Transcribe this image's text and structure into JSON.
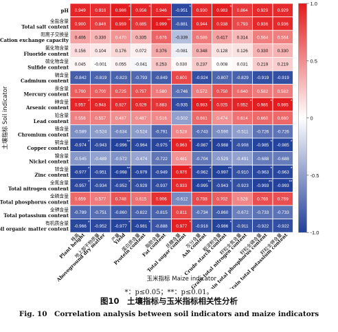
{
  "chart_data": {
    "type": "heatmap",
    "rows": [
      {
        "cn": "",
        "en": "pH"
      },
      {
        "cn": "全盐含量",
        "en": "Total salt content"
      },
      {
        "cn": "阳离子交换量",
        "en": "Cation exchange capacity"
      },
      {
        "cn": "氟化物含量",
        "en": "Fluoride content"
      },
      {
        "cn": "硫化物含量",
        "en": "Sulfide content"
      },
      {
        "cn": "镉含量",
        "en": "Cadmium content"
      },
      {
        "cn": "汞含量",
        "en": "Mercury content"
      },
      {
        "cn": "砷含量",
        "en": "Arsenic content"
      },
      {
        "cn": "铅含量",
        "en": "Lead content"
      },
      {
        "cn": "铬含量",
        "en": "Chromium content"
      },
      {
        "cn": "铜含量",
        "en": "Copper content"
      },
      {
        "cn": "镍含量",
        "en": "Nickel content"
      },
      {
        "cn": "锌含量",
        "en": "Zinc content"
      },
      {
        "cn": "全氮含量",
        "en": "Total nitrogen content"
      },
      {
        "cn": "全磷含量",
        "en": "Total phosphorus content"
      },
      {
        "cn": "全钾含量",
        "en": "Total potassium content"
      },
      {
        "cn": "有机质含量",
        "en": "Soil organic matter content"
      }
    ],
    "columns": [
      {
        "cn": "株高",
        "en": "Plant height"
      },
      {
        "cn": "地上部干物质量",
        "en": "Aboveground dry matter"
      },
      {
        "cn": "产量",
        "en": "Yield"
      },
      {
        "cn": "蛋白质含量",
        "en": "Protein content"
      },
      {
        "cn": "脂肪含量",
        "en": "Fat content"
      },
      {
        "cn": "总糖含量",
        "en": "Total sugar content"
      },
      {
        "cn": "灰分含量",
        "en": "Ash content"
      },
      {
        "cn": "粗淀粉含量",
        "en": "Crude starch content"
      },
      {
        "cn": "籽粒全氮含量",
        "en": "Grain total nitrogen content"
      },
      {
        "cn": "籽粒全磷含量",
        "en": "Grain total phosphorus content"
      },
      {
        "cn": "籽粒全钾含量",
        "en": "Grain total potassium content"
      }
    ],
    "values": [
      [
        0.949,
        0.916,
        0.986,
        0.956,
        0.946,
        -0.951,
        0.93,
        0.983,
        0.864,
        0.929,
        0.929
      ],
      [
        0.9,
        0.846,
        0.959,
        0.885,
        0.999,
        -0.881,
        0.944,
        0.938,
        0.793,
        0.936,
        0.936
      ],
      [
        0.406,
        0.33,
        0.47,
        0.335,
        0.676,
        -0.339,
        0.586,
        0.417,
        0.314,
        0.564,
        0.564
      ],
      [
        0.156,
        0.104,
        0.176,
        0.072,
        0.376,
        -0.081,
        0.348,
        0.128,
        0.126,
        0.33,
        0.33
      ],
      [
        0.045,
        -0.001,
        0.055,
        -0.041,
        0.253,
        0.03,
        0.237,
        0.008,
        0.031,
        0.219,
        0.219
      ],
      [
        -0.842,
        -0.819,
        -0.823,
        -0.793,
        -0.849,
        0.8,
        -0.924,
        -0.807,
        -0.829,
        -0.919,
        -0.919
      ],
      [
        0.7,
        0.7,
        0.725,
        0.757,
        0.58,
        -0.746,
        0.572,
        0.75,
        0.64,
        0.582,
        0.582
      ],
      [
        0.957,
        0.948,
        0.927,
        0.929,
        0.883,
        -0.935,
        0.983,
        0.925,
        0.952,
        0.985,
        0.985
      ],
      [
        0.556,
        0.557,
        0.487,
        0.487,
        0.516,
        -0.502,
        0.661,
        0.474,
        0.614,
        0.66,
        0.66
      ],
      [
        -0.589,
        -0.524,
        -0.634,
        -0.524,
        -0.791,
        0.528,
        -0.743,
        -0.59,
        -0.511,
        -0.726,
        -0.726
      ],
      [
        -0.974,
        -0.943,
        -0.996,
        -0.964,
        -0.975,
        0.963,
        -0.987,
        -0.988,
        -0.908,
        -0.985,
        -0.985
      ],
      [
        -0.545,
        -0.489,
        -0.572,
        -0.474,
        -0.722,
        0.481,
        -0.704,
        -0.529,
        -0.491,
        -0.688,
        -0.688
      ],
      [
        -0.977,
        -0.951,
        -0.998,
        -0.979,
        -0.949,
        0.976,
        -0.962,
        -0.997,
        -0.91,
        -0.963,
        -0.963
      ],
      [
        -0.957,
        -0.934,
        -0.952,
        -0.929,
        -0.937,
        0.933,
        -0.995,
        -0.943,
        -0.923,
        -0.993,
        -0.993
      ],
      [
        0.659,
        0.577,
        0.748,
        0.615,
        0.906,
        -0.612,
        0.788,
        0.702,
        0.528,
        0.769,
        0.769
      ],
      [
        -0.789,
        -0.751,
        -0.86,
        -0.822,
        -0.815,
        0.811,
        -0.734,
        -0.86,
        -0.672,
        -0.733,
        -0.733
      ],
      [
        -0.966,
        -0.952,
        -0.977,
        -0.981,
        -0.888,
        0.977,
        -0.918,
        -0.986,
        -0.911,
        -0.922,
        -0.922
      ]
    ],
    "significance": [
      [
        "",
        "",
        "*",
        "*",
        "",
        "*",
        "",
        "*",
        "",
        "",
        ""
      ],
      [
        "",
        "",
        "*",
        "",
        "**",
        "",
        "",
        "",
        "",
        "",
        ""
      ],
      [
        "",
        "",
        "",
        "",
        "",
        "",
        "",
        "",
        "",
        "",
        ""
      ],
      [
        "",
        "",
        "",
        "",
        "",
        "",
        "",
        "",
        "",
        "",
        ""
      ],
      [
        "",
        "",
        "",
        "",
        "",
        "",
        "",
        "",
        "",
        "",
        ""
      ],
      [
        "",
        "",
        "",
        "",
        "",
        "",
        "",
        "",
        "",
        "",
        ""
      ],
      [
        "",
        "",
        "",
        "",
        "",
        "",
        "",
        "",
        "",
        "",
        ""
      ],
      [
        "*",
        "",
        "",
        "",
        "",
        "",
        "*",
        "",
        "*",
        "*",
        "*"
      ],
      [
        "",
        "",
        "",
        "",
        "",
        "",
        "",
        "",
        "",
        "",
        ""
      ],
      [
        "",
        "",
        "",
        "",
        "",
        "",
        "",
        "",
        "",
        "",
        ""
      ],
      [
        "*",
        "",
        "**",
        "",
        "*",
        "*",
        "*",
        "*",
        "",
        "*",
        "*"
      ],
      [
        "",
        "",
        "",
        "",
        "",
        "",
        "",
        "",
        "",
        "",
        ""
      ],
      [
        "*",
        "",
        "**",
        "",
        "",
        "*",
        "*",
        "**",
        "",
        "*",
        "*"
      ],
      [
        "*",
        "",
        "*",
        "",
        "",
        "",
        "**",
        "*",
        "",
        "**",
        "**"
      ],
      [
        "",
        "",
        "",
        "",
        "",
        "",
        "",
        "",
        "",
        "",
        ""
      ],
      [
        "",
        "",
        "",
        "",
        "",
        "",
        "",
        "",
        "",
        "",
        ""
      ],
      [
        "*",
        "",
        "*",
        "*",
        "",
        "*",
        "",
        "*",
        "",
        "",
        ""
      ]
    ],
    "ylabel": "土壤指标 Soil indicator",
    "xlabel": "玉米指标 Maize indicator",
    "colorbar_ticks": [
      "1.0",
      "0.5",
      "0",
      "-0.5",
      "-1.0"
    ],
    "vmin": -1.0,
    "vmax": 1.0,
    "colors": {
      "negative": "#21409a",
      "middle": "#ffffff",
      "positive": "#e31a1c"
    }
  },
  "caption": {
    "significance_note": "*：p≤0.05；**：p≤0.01。",
    "title_cn": "图10　土壤指标与玉米指标相关性分析",
    "title_en": "Fig. 10　Correlation analysis between soil indicators and maize indicators"
  }
}
